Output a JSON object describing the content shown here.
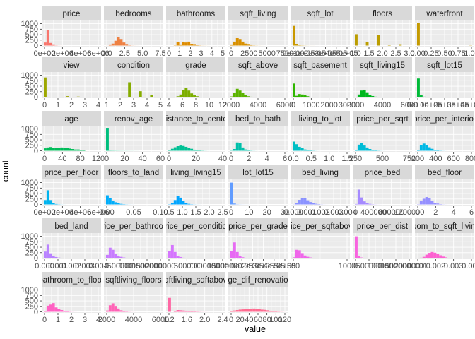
{
  "chart_data": {
    "type": "histogram-facets",
    "xlabel": "value",
    "ylabel": "count",
    "yticks": [
      "0",
      "250",
      "500",
      "750",
      "1000"
    ],
    "ylim": [
      0,
      1100
    ],
    "grid": true,
    "colors": {
      "panel_bg": "#ebebeb",
      "grid_major": "#ffffff",
      "strip_bg": "#d9d9d9",
      "tick_text": "#4d4d4d"
    },
    "panels": [
      {
        "name": "price",
        "color": "#F8766D",
        "xticks": [
          "0e+00",
          "2e+06",
          "4e+06",
          "6e+06"
        ],
        "counts": [
          140,
          700,
          120,
          25,
          8,
          3,
          1,
          0,
          0,
          0,
          0,
          0,
          0,
          0,
          0,
          0,
          0,
          0,
          0,
          0
        ]
      },
      {
        "name": "bedrooms",
        "color": "#EE8042",
        "xticks": [
          "0.0",
          "2.5",
          "5.0",
          "7.5"
        ],
        "counts": [
          2,
          20,
          90,
          220,
          380,
          300,
          140,
          40,
          12,
          4,
          2,
          1,
          0,
          0,
          0,
          0,
          0,
          0,
          0,
          0
        ]
      },
      {
        "name": "bathrooms",
        "color": "#DE8C00",
        "xticks": [
          "0",
          "1",
          "2",
          "3",
          "4",
          "5"
        ],
        "counts": [
          0,
          0,
          10,
          170,
          20,
          170,
          140,
          180,
          60,
          35,
          15,
          8,
          3,
          2,
          1,
          0,
          0,
          0,
          0,
          0
        ]
      },
      {
        "name": "sqft_living",
        "color": "#D89000",
        "xticks": [
          "0",
          "2500",
          "5000",
          "7500"
        ],
        "counts": [
          20,
          180,
          340,
          300,
          180,
          90,
          40,
          18,
          8,
          4,
          2,
          1,
          0,
          0,
          0,
          0,
          0,
          0,
          0,
          0
        ]
      },
      {
        "name": "sqft_lot",
        "color": "#C99800",
        "xticks": [
          "0e+00",
          "1e+05",
          "2e+05",
          "3e+05",
          "4e+05",
          "5e+05"
        ],
        "counts": [
          900,
          60,
          15,
          8,
          4,
          2,
          1,
          1,
          0,
          0,
          0,
          0,
          0,
          0,
          0,
          0,
          0,
          0,
          0,
          0
        ]
      },
      {
        "name": "floors",
        "color": "#BB9D00",
        "xticks": [
          "1.0",
          "1.5",
          "2.0",
          "2.5",
          "3.0"
        ],
        "counts": [
          520,
          0,
          0,
          0,
          160,
          0,
          0,
          0,
          470,
          0,
          0,
          0,
          15,
          0,
          0,
          0,
          30,
          0,
          0,
          0
        ]
      },
      {
        "name": "waterfront",
        "color": "#C49A00",
        "xticks": [
          "0.00",
          "0.25",
          "0.50",
          "0.75",
          "1.00"
        ],
        "counts": [
          1050,
          0,
          0,
          0,
          0,
          0,
          0,
          0,
          0,
          0,
          0,
          0,
          0,
          0,
          0,
          0,
          0,
          0,
          0,
          8
        ]
      },
      {
        "name": "view",
        "color": "#9DA700",
        "xticks": [
          "0",
          "1",
          "2",
          "3",
          "4"
        ],
        "counts": [
          900,
          0,
          0,
          0,
          15,
          0,
          0,
          0,
          45,
          0,
          0,
          0,
          25,
          0,
          0,
          0,
          15,
          0,
          0,
          0
        ]
      },
      {
        "name": "condition",
        "color": "#86AC00",
        "xticks": [
          "1",
          "2",
          "3",
          "4",
          "5"
        ],
        "counts": [
          2,
          0,
          0,
          0,
          8,
          0,
          0,
          0,
          680,
          0,
          0,
          0,
          270,
          0,
          0,
          0,
          80,
          0,
          0,
          0
        ]
      },
      {
        "name": "grade",
        "color": "#7CAE00",
        "xticks": [
          "4",
          "6",
          "8",
          "10",
          "12"
        ],
        "counts": [
          0,
          2,
          10,
          40,
          120,
          320,
          420,
          300,
          170,
          80,
          40,
          15,
          5,
          2,
          0,
          0,
          0,
          0,
          0,
          0
        ]
      },
      {
        "name": "sqft_above",
        "color": "#5BB300",
        "xticks": [
          "2000",
          "4000",
          "6000"
        ],
        "counts": [
          30,
          200,
          380,
          300,
          180,
          90,
          40,
          18,
          8,
          3,
          1,
          0,
          0,
          0,
          0,
          0,
          0,
          0,
          0,
          0
        ]
      },
      {
        "name": "sqft_basement",
        "color": "#2FB600",
        "xticks": [
          "0",
          "1000",
          "2000",
          "3000"
        ],
        "counts": [
          620,
          60,
          140,
          120,
          80,
          40,
          15,
          6,
          3,
          1,
          0,
          0,
          0,
          0,
          0,
          0,
          0,
          0,
          0,
          0
        ]
      },
      {
        "name": "sqft_living15",
        "color": "#00B81F",
        "xticks": [
          "2000",
          "4000",
          "6000"
        ],
        "counts": [
          10,
          120,
          300,
          340,
          220,
          110,
          50,
          20,
          8,
          3,
          1,
          0,
          0,
          0,
          0,
          0,
          0,
          0,
          0,
          0
        ]
      },
      {
        "name": "sqft_lot15",
        "color": "#00BA38",
        "xticks": [
          "0e+00",
          "1e+05",
          "2e+05",
          "3e+05",
          "4e+05"
        ],
        "counts": [
          850,
          80,
          20,
          10,
          5,
          2,
          1,
          0,
          0,
          0,
          0,
          0,
          0,
          0,
          0,
          0,
          0,
          0,
          0,
          0
        ]
      },
      {
        "name": "age",
        "color": "#00BC59",
        "xticks": [
          "0",
          "40",
          "80",
          "120"
        ],
        "counts": [
          110,
          150,
          170,
          140,
          120,
          130,
          150,
          140,
          120,
          100,
          80,
          60,
          60,
          40,
          25,
          0,
          0,
          0,
          0,
          0
        ]
      },
      {
        "name": "renov_age",
        "color": "#00BF7D",
        "xticks": [
          "0",
          "20",
          "40",
          "60"
        ],
        "counts": [
          1050,
          10,
          8,
          6,
          5,
          4,
          3,
          3,
          2,
          2,
          1,
          1,
          0,
          0,
          0,
          0,
          0,
          0,
          0,
          0
        ]
      },
      {
        "name": "distance_to_center",
        "color": "#00C094",
        "xticks": [
          "0",
          "20",
          "40"
        ],
        "counts": [
          30,
          90,
          160,
          210,
          240,
          220,
          180,
          140,
          90,
          50,
          30,
          15,
          8,
          3,
          1,
          0,
          0,
          0,
          0,
          0
        ]
      },
      {
        "name": "bed_to_bath",
        "color": "#00C0AA",
        "xticks": [
          "0",
          "2",
          "4",
          "6"
        ],
        "counts": [
          10,
          80,
          380,
          360,
          150,
          60,
          20,
          8,
          3,
          1,
          0,
          0,
          0,
          0,
          0,
          0,
          0,
          0,
          0,
          0
        ]
      },
      {
        "name": "living_to_lot",
        "color": "#00BFC4",
        "xticks": [
          "0.0",
          "0.5",
          "1.0",
          "1.5"
        ],
        "counts": [
          420,
          300,
          180,
          120,
          60,
          30,
          15,
          8,
          3,
          1,
          0,
          0,
          0,
          0,
          0,
          0,
          0,
          0,
          0,
          0
        ]
      },
      {
        "name": "price_per_sqrt",
        "color": "#00BCD6",
        "xticks": [
          "250",
          "500",
          "750"
        ],
        "counts": [
          30,
          280,
          340,
          240,
          150,
          80,
          40,
          20,
          8,
          3,
          1,
          0,
          0,
          0,
          0,
          0,
          0,
          0,
          0,
          0
        ]
      },
      {
        "name": "price_per_interior",
        "color": "#00B8E5",
        "xticks": [
          "200",
          "400",
          "600",
          "800"
        ],
        "counts": [
          40,
          260,
          330,
          260,
          160,
          90,
          40,
          20,
          8,
          3,
          1,
          0,
          0,
          0,
          0,
          0,
          0,
          0,
          0,
          0
        ]
      },
      {
        "name": "price_per_floor",
        "color": "#00B4EF",
        "xticks": [
          "0e+00",
          "2e+06",
          "4e+06",
          "6e+06"
        ],
        "counts": [
          200,
          650,
          200,
          60,
          20,
          8,
          3,
          1,
          0,
          0,
          0,
          0,
          0,
          0,
          0,
          0,
          0,
          0,
          0,
          0
        ]
      },
      {
        "name": "floors_to_land",
        "color": "#00ADFA",
        "xticks": [
          "0.00",
          "0.05",
          "0.10"
        ],
        "counts": [
          420,
          300,
          180,
          100,
          50,
          25,
          12,
          5,
          2,
          1,
          0,
          0,
          0,
          0,
          0,
          0,
          0,
          0,
          0,
          0
        ]
      },
      {
        "name": "living_living15",
        "color": "#00A5FF",
        "xticks": [
          "0.5",
          "1.0",
          "1.5",
          "2.0",
          "2.5"
        ],
        "counts": [
          10,
          60,
          200,
          400,
          310,
          150,
          60,
          25,
          10,
          4,
          2,
          1,
          0,
          0,
          0,
          0,
          0,
          0,
          0,
          0
        ]
      },
      {
        "name": "lot_lot15",
        "color": "#619CFF",
        "xticks": [
          "0",
          "10",
          "20",
          "30"
        ],
        "counts": [
          1000,
          40,
          8,
          4,
          2,
          1,
          1,
          0,
          0,
          0,
          0,
          0,
          0,
          0,
          0,
          0,
          0,
          0,
          0,
          0
        ]
      },
      {
        "name": "bed_living",
        "color": "#8B93FF",
        "xticks": [
          "0.000",
          "0.001",
          "0.002",
          "0.003",
          "0.004"
        ],
        "counts": [
          5,
          60,
          210,
          300,
          280,
          190,
          110,
          60,
          30,
          15,
          6,
          2,
          1,
          0,
          0,
          0,
          0,
          0,
          0,
          0
        ]
      },
      {
        "name": "price_bed",
        "color": "#A58AFF",
        "xticks": [
          "0",
          "400000",
          "800000",
          "1200000"
        ],
        "counts": [
          20,
          680,
          320,
          140,
          60,
          25,
          10,
          4,
          2,
          1,
          0,
          0,
          0,
          0,
          0,
          0,
          0,
          0,
          0,
          0
        ]
      },
      {
        "name": "bed_floor",
        "color": "#9590FF",
        "xticks": [
          "0",
          "2",
          "4",
          "6"
        ],
        "counts": [
          10,
          180,
          260,
          340,
          280,
          150,
          80,
          40,
          15,
          5,
          2,
          1,
          0,
          0,
          0,
          0,
          0,
          0,
          0,
          0
        ]
      },
      {
        "name": "bed_land",
        "color": "#B983FF",
        "xticks": [
          "0.000",
          "0.001",
          "0.002",
          "0.003",
          "0.004"
        ],
        "counts": [
          300,
          620,
          220,
          100,
          50,
          25,
          12,
          5,
          2,
          1,
          0,
          0,
          0,
          0,
          0,
          0,
          0,
          0,
          0,
          0
        ]
      },
      {
        "name": "price_per_bathroom",
        "color": "#C77CFF",
        "xticks": [
          "0",
          "500000",
          "1000000",
          "1500000",
          "2000000"
        ],
        "counts": [
          150,
          480,
          380,
          200,
          110,
          60,
          30,
          15,
          8,
          3,
          1,
          0,
          0,
          0,
          0,
          0,
          0,
          0,
          0,
          0
        ]
      },
      {
        "name": "price_per_condition",
        "color": "#D575FE",
        "xticks": [
          "0",
          "500000",
          "1000000",
          "1500000"
        ],
        "counts": [
          330,
          600,
          280,
          110,
          50,
          20,
          8,
          3,
          1,
          0,
          0,
          0,
          0,
          0,
          0,
          0,
          0,
          0,
          0,
          0
        ]
      },
      {
        "name": "price_per_grade",
        "color": "#E76BF3",
        "xticks": [
          "0e+00",
          "1e+05",
          "2e+05",
          "3e+05",
          "4e+05",
          "5e+05"
        ],
        "counts": [
          330,
          720,
          280,
          100,
          40,
          15,
          6,
          2,
          1,
          0,
          0,
          0,
          0,
          0,
          0,
          0,
          0,
          0,
          0,
          0
        ]
      },
      {
        "name": "price_per_sqftabove",
        "color": "#F066EA",
        "xticks": [
          "500",
          "1000"
        ],
        "counts": [
          40,
          380,
          360,
          230,
          120,
          60,
          30,
          12,
          5,
          2,
          1,
          0,
          0,
          0,
          0,
          0,
          0,
          0,
          0,
          0
        ]
      },
      {
        "name": "price_per_dist",
        "color": "#F863DF",
        "xticks": [
          "0",
          "500000",
          "1000000",
          "1500000",
          "2000000"
        ],
        "counts": [
          1000,
          110,
          30,
          12,
          6,
          3,
          1,
          0,
          0,
          0,
          0,
          0,
          0,
          0,
          0,
          0,
          0,
          0,
          0,
          0
        ]
      },
      {
        "name": "room_to_sqft_living",
        "color": "#FD61D1",
        "xticks": [
          "0.001",
          "0.002",
          "0.003",
          "0.004"
        ],
        "counts": [
          5,
          20,
          60,
          160,
          240,
          280,
          250,
          190,
          130,
          70,
          35,
          15,
          6,
          2,
          1,
          0,
          0,
          0,
          0,
          0
        ]
      },
      {
        "name": "bathroom_to_floor",
        "color": "#FF61C3",
        "xticks": [
          "0",
          "1",
          "2",
          "3",
          "4"
        ],
        "counts": [
          20,
          280,
          330,
          400,
          200,
          140,
          80,
          40,
          18,
          8,
          3,
          1,
          0,
          0,
          0,
          0,
          0,
          0,
          0,
          0
        ]
      },
      {
        "name": "sqftliving_floors",
        "color": "#FF63B6",
        "xticks": [
          "2000",
          "4000",
          "6000"
        ],
        "counts": [
          60,
          300,
          390,
          270,
          150,
          70,
          30,
          12,
          5,
          2,
          1,
          0,
          0,
          0,
          0,
          0,
          0,
          0,
          0,
          0
        ]
      },
      {
        "name": "sqftliving_sqftabove",
        "color": "#FF67A4",
        "xticks": [
          "1.2",
          "1.6",
          "2.0",
          "2.4"
        ],
        "counts": [
          640,
          0,
          30,
          80,
          70,
          60,
          50,
          40,
          25,
          15,
          10,
          6,
          3,
          2,
          1,
          0,
          0,
          0,
          0,
          0
        ]
      },
      {
        "name": "age_dif_renovation",
        "color": "#FF6C91",
        "xticks": [
          "0",
          "20",
          "40",
          "60",
          "80",
          "100",
          "120"
        ],
        "counts": [
          40,
          60,
          80,
          100,
          110,
          120,
          130,
          140,
          150,
          140,
          120,
          100,
          90,
          70,
          50,
          35,
          20,
          10,
          5,
          2
        ]
      }
    ]
  }
}
